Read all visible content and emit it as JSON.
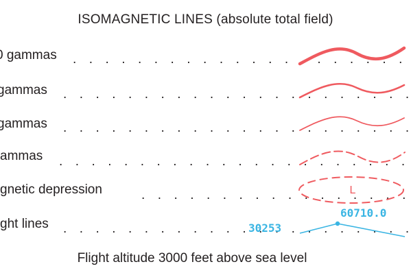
{
  "title": "ISOMAGNETIC  LINES (absolute total field)",
  "rows": [
    {
      "label": "0 gammas"
    },
    {
      "label": "gammas"
    },
    {
      "label": "gammas"
    },
    {
      "label": "ammas"
    },
    {
      "label": "gnetic depression"
    },
    {
      "label": "ght lines"
    }
  ],
  "depression_letter": "L",
  "flight_line": {
    "line_number": "30253",
    "fiducial_value": "60710.0"
  },
  "footer": "Flight altitude 3000 feet above sea level",
  "colors": {
    "isomagnetic": "#ef5a5f",
    "flight_line": "#3ab5e3",
    "text": "#231f20"
  }
}
